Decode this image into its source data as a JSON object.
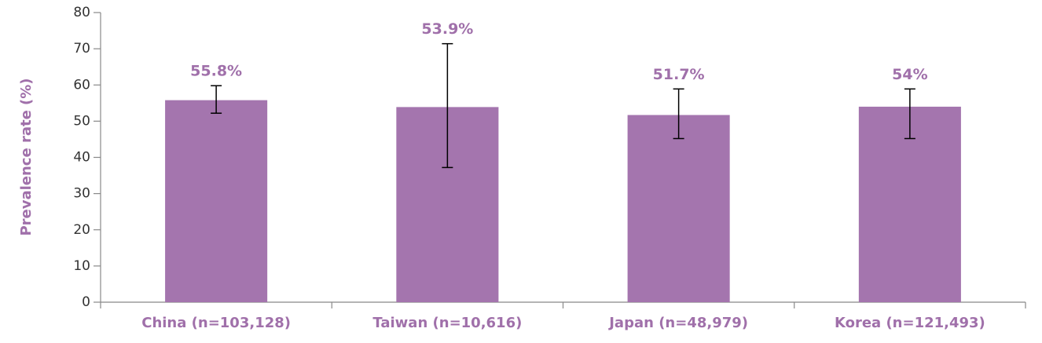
{
  "chart_data": {
    "type": "bar",
    "y_label": "Prevalence rate (%)",
    "categories": [
      "China (n=103,128)",
      "Taiwan (n=10,616)",
      "Japan (n=48,979)",
      "Korea (n=121,493)"
    ],
    "values": [
      55.8,
      53.9,
      51.7,
      54
    ],
    "value_labels": [
      "55.8%",
      "53.9%",
      "51.7%",
      "54%"
    ],
    "lower": [
      52.2,
      37.2,
      45.2,
      45.2
    ],
    "upper": [
      59.8,
      71.4,
      58.9,
      58.9
    ],
    "color": "#a475ae",
    "ylim": [
      0,
      80
    ],
    "yticks": [
      0,
      10,
      20,
      30,
      40,
      50,
      60,
      70,
      80
    ],
    "grid": false
  }
}
